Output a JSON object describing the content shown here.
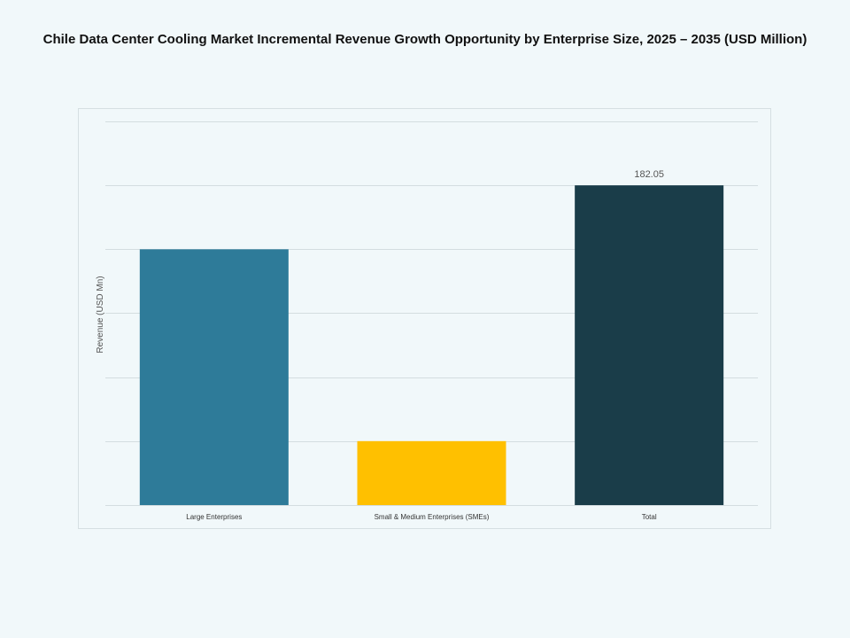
{
  "chart_data": {
    "type": "bar",
    "title": "Chile Data Center Cooling Market Incremental Revenue Growth Opportunity by Enterprise Size, 2025 – 2035 (USD Million)",
    "xlabel": "",
    "ylabel": "Revenue (USD Mn)",
    "categories": [
      "Large Enterprises",
      "Small & Medium Enterprises (SMEs)",
      "Total"
    ],
    "values": [
      145.64,
      36.41,
      182.05
    ],
    "data_labels": [
      "",
      "",
      "182.05"
    ],
    "colors": [
      "#2e7b99",
      "#ffc000",
      "#1a3d49"
    ],
    "ylim": [
      0,
      218.46
    ],
    "grid": true,
    "y_tick_labels_shown": false,
    "legend": "none"
  }
}
